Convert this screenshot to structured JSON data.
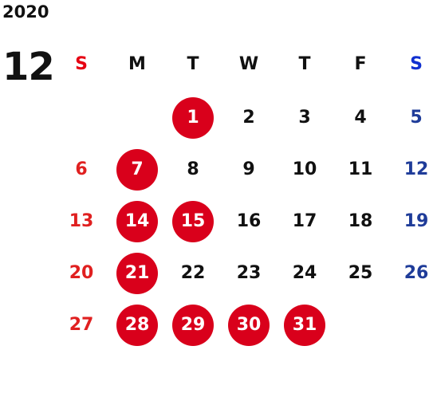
{
  "year": "2020",
  "month": "12",
  "colors": {
    "holiday_circle": "#d9001b",
    "sunday": "#e02020",
    "saturday": "#1f3c99",
    "text": "#111111"
  },
  "weekdays": [
    "S",
    "M",
    "T",
    "W",
    "T",
    "F",
    "S"
  ],
  "weeks": [
    [
      "",
      "",
      "1",
      "2",
      "3",
      "4",
      "5"
    ],
    [
      "6",
      "7",
      "8",
      "9",
      "10",
      "11",
      "12"
    ],
    [
      "13",
      "14",
      "15",
      "16",
      "17",
      "18",
      "19"
    ],
    [
      "20",
      "21",
      "22",
      "23",
      "24",
      "25",
      "26"
    ],
    [
      "27",
      "28",
      "29",
      "30",
      "31",
      "",
      ""
    ]
  ],
  "highlighted_days": [
    "1",
    "7",
    "14",
    "15",
    "21",
    "28",
    "29",
    "30",
    "31"
  ]
}
